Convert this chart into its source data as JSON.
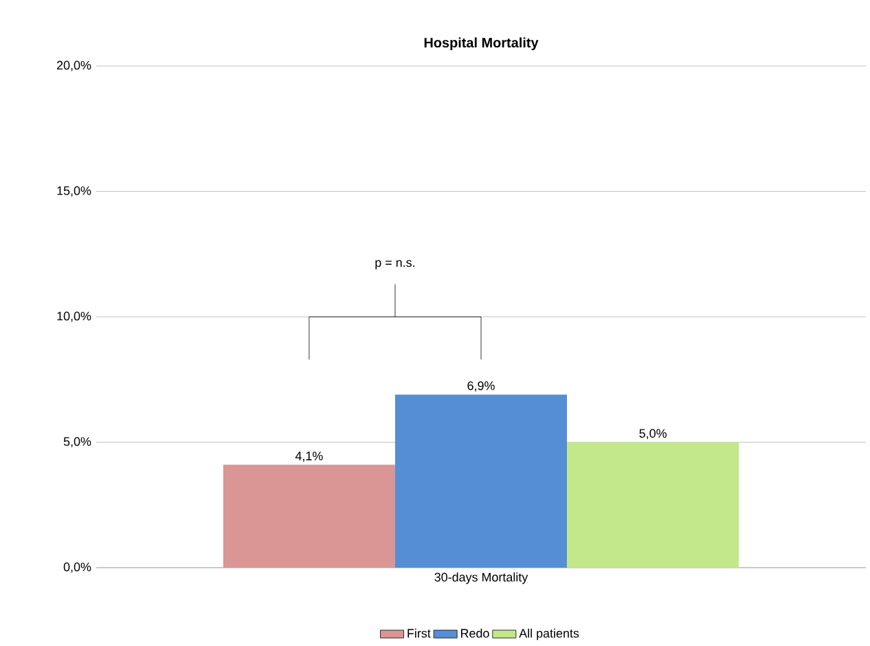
{
  "chart_data": {
    "type": "bar",
    "title": "Hospital Mortality",
    "categories": [
      "30-days Mortality"
    ],
    "series": [
      {
        "name": "First",
        "color": "#d99694",
        "values": [
          4.1
        ],
        "value_labels": [
          "4,1%"
        ]
      },
      {
        "name": "Redo",
        "color": "#558ed5",
        "values": [
          6.9
        ],
        "value_labels": [
          "6,9%"
        ]
      },
      {
        "name": "All patients",
        "color": "#c3e88a",
        "values": [
          5.0
        ],
        "value_labels": [
          "5,0%"
        ]
      }
    ],
    "ylim": [
      0,
      20
    ],
    "yticks": [
      {
        "value": 0,
        "label": "0,0%"
      },
      {
        "value": 5,
        "label": "5,0%"
      },
      {
        "value": 10,
        "label": "10,0%"
      },
      {
        "value": 15,
        "label": "15,0%"
      },
      {
        "value": 20,
        "label": "20,0%"
      }
    ],
    "grid": "y",
    "legend": "bottom",
    "annotations": [
      "p = n.s."
    ]
  }
}
